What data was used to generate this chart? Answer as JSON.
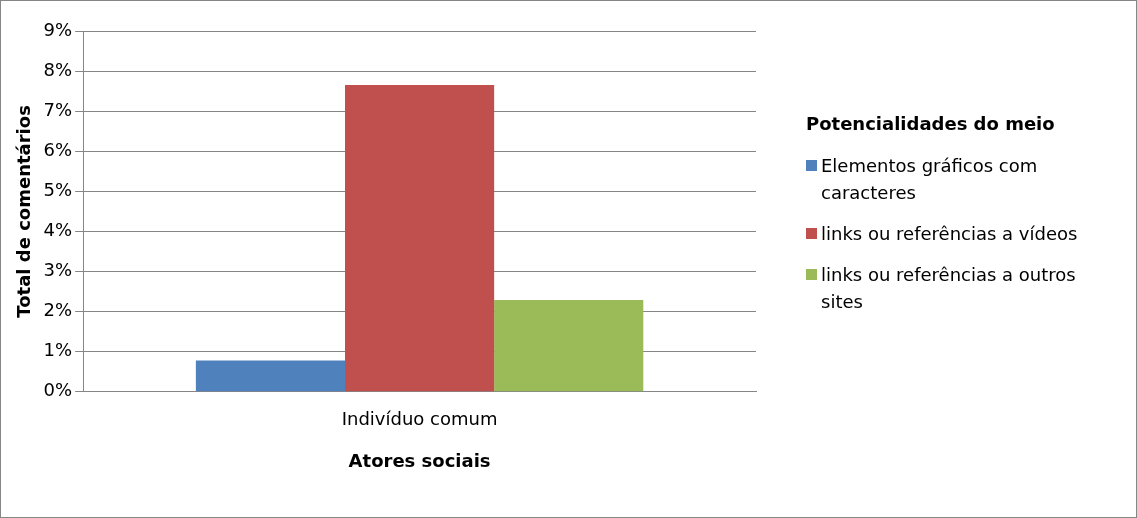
{
  "chart_data": {
    "type": "bar",
    "xlabel": "Atores sociais",
    "ylabel": "Total de comentários",
    "legend_title": "Potencialidades do meio",
    "categories": [
      "Indivíduo comum"
    ],
    "series": [
      {
        "name": "Elementos gráficos com caracteres",
        "color": "#4f81bd",
        "values": [
          0.78
        ]
      },
      {
        "name": "links ou referências  a vídeos",
        "color": "#c0504d",
        "values": [
          7.65
        ]
      },
      {
        "name": "links ou referências a outros sites",
        "color": "#9bbb59",
        "values": [
          2.29
        ]
      }
    ],
    "ylim": [
      0,
      9
    ],
    "yticks": [
      {
        "value": 0,
        "label": "0%"
      },
      {
        "value": 1,
        "label": "1%"
      },
      {
        "value": 2,
        "label": "2%"
      },
      {
        "value": 3,
        "label": "3%"
      },
      {
        "value": 4,
        "label": "4%"
      },
      {
        "value": 5,
        "label": "5%"
      },
      {
        "value": 6,
        "label": "6%"
      },
      {
        "value": 7,
        "label": "7%"
      },
      {
        "value": 8,
        "label": "8%"
      },
      {
        "value": 9,
        "label": "9%"
      }
    ],
    "grid": "y",
    "legend": "right"
  }
}
